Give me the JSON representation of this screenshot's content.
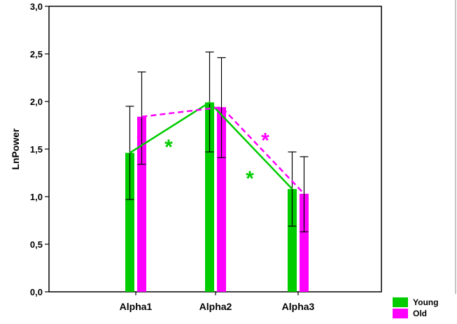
{
  "chart_data": {
    "type": "bar",
    "title": "",
    "xlabel": "",
    "ylabel": "LnPower",
    "ylim": [
      0,
      3
    ],
    "yticks": [
      "0,0",
      "0,5",
      "1,0",
      "1,5",
      "2,0",
      "2,5",
      "3,0"
    ],
    "categories": [
      "Alpha1",
      "Alpha2",
      "Alpha3"
    ],
    "grid": false,
    "legend_position": "bottom-right, outside plot",
    "series": [
      {
        "name": "Young",
        "color": "#00cc00",
        "values": [
          1.46,
          1.99,
          1.08
        ],
        "error_low": [
          0.97,
          1.47,
          0.69
        ],
        "error_high": [
          1.95,
          2.52,
          1.47
        ],
        "line_style": "solid"
      },
      {
        "name": "Old",
        "color": "#ff00ff",
        "values": [
          1.84,
          1.94,
          1.03
        ],
        "error_low": [
          1.34,
          1.41,
          0.63
        ],
        "error_high": [
          2.31,
          2.46,
          1.42
        ],
        "line_style": "dashed"
      }
    ],
    "annotations": [
      {
        "text": "*",
        "color": "#00cc00",
        "between": [
          "Alpha1",
          "Alpha2"
        ],
        "y": 1.55
      },
      {
        "text": "*",
        "color": "#ff00ff",
        "between": [
          "Alpha2",
          "Alpha3"
        ],
        "y": 1.62
      },
      {
        "text": "*",
        "color": "#00cc00",
        "between": [
          "Alpha2",
          "Alpha3"
        ],
        "y": 1.22
      }
    ]
  }
}
